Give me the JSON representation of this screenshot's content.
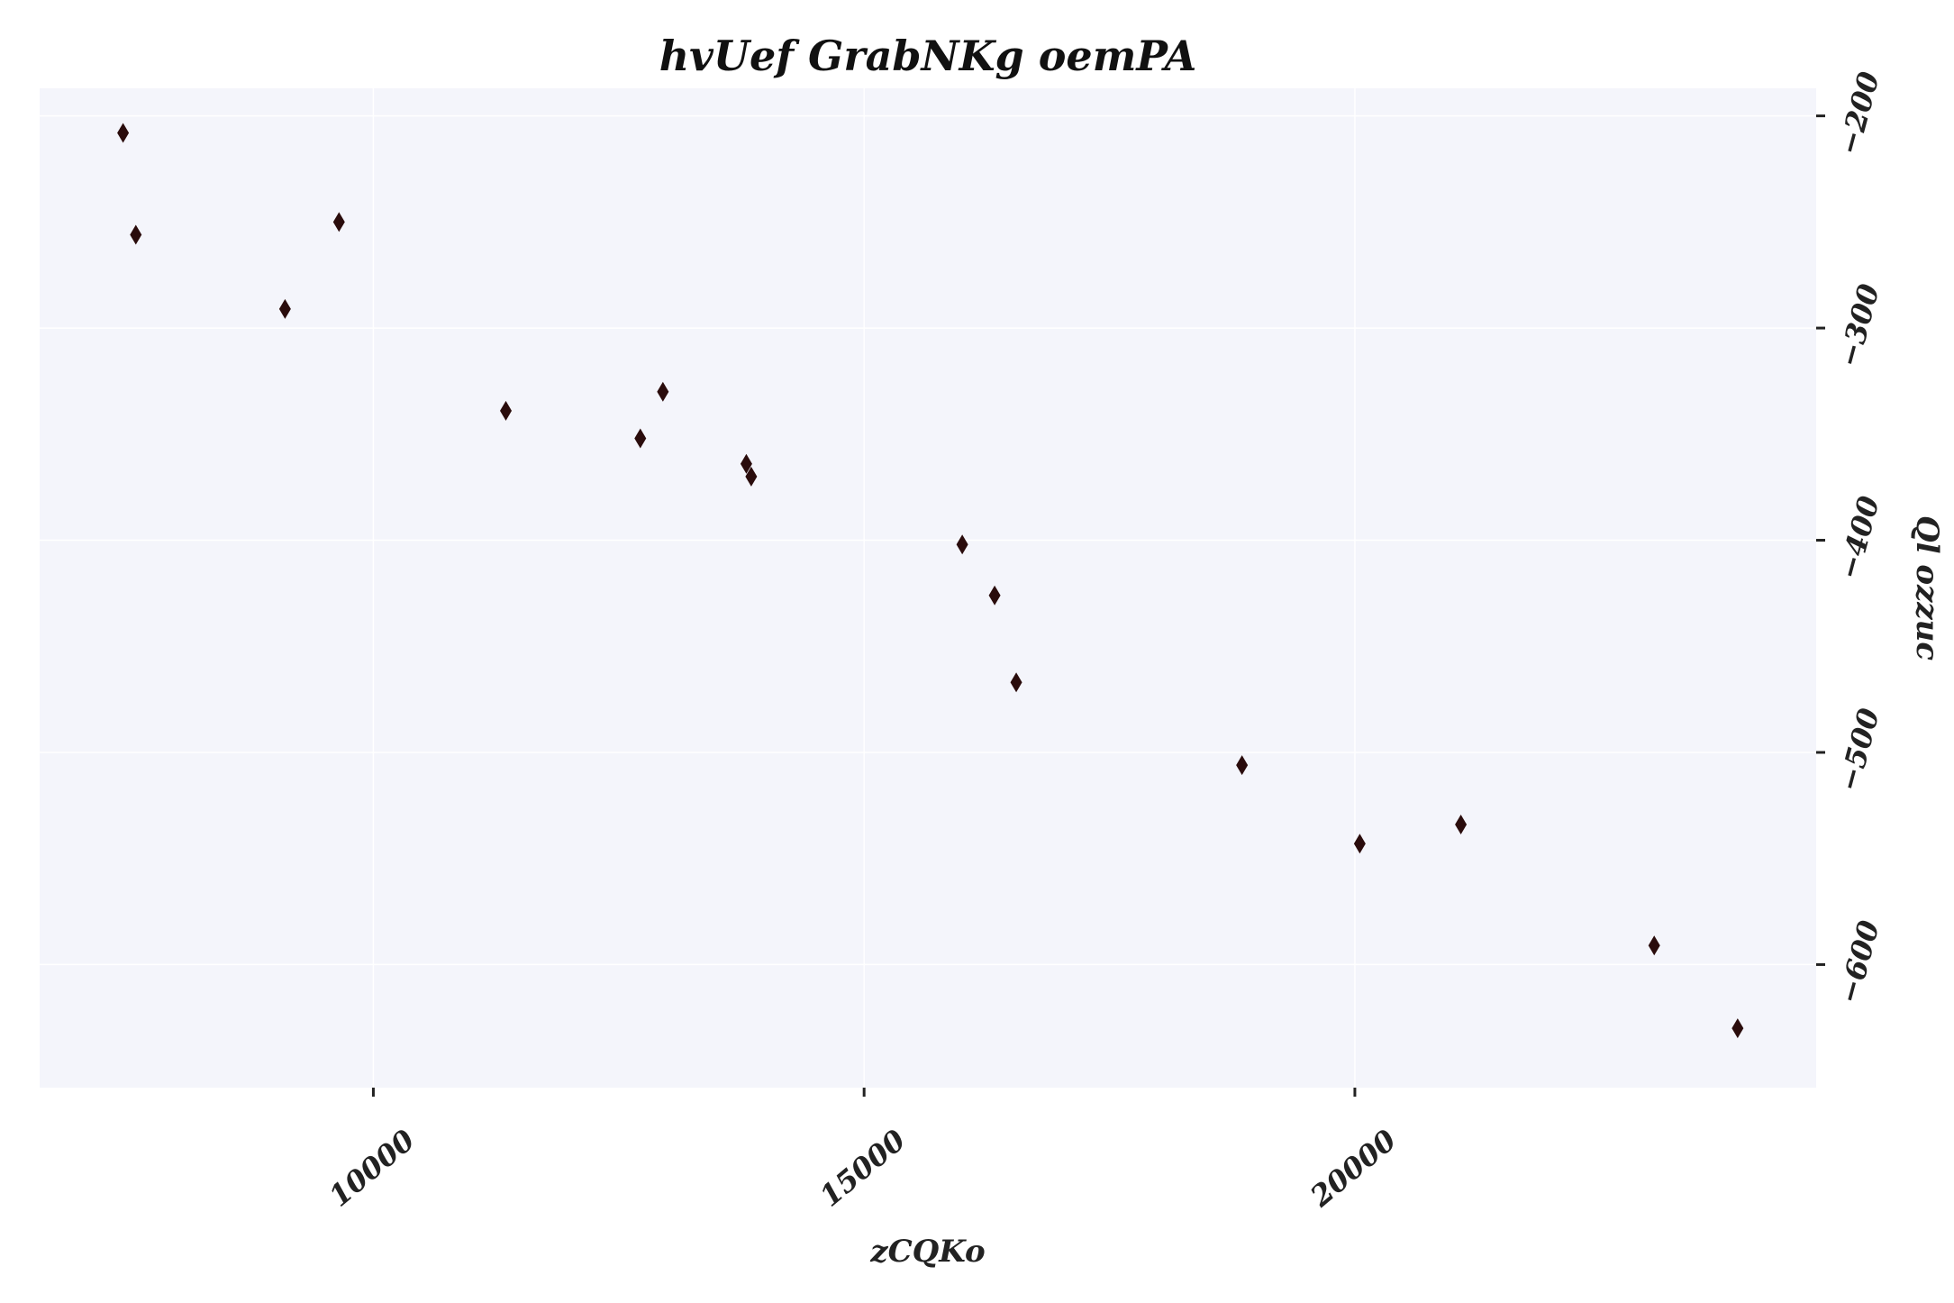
{
  "chart_data": {
    "type": "scatter",
    "title": "hvUef GrabNKg oemPA",
    "xlabel": "zCQKo",
    "ylabel": "Ql ozzuc",
    "xlim": [
      6600,
      24700
    ],
    "ylim": [
      -658,
      -187
    ],
    "x_ticks": [
      10000,
      15000,
      20000
    ],
    "x_tick_labels": [
      "10000",
      "15000",
      "20000"
    ],
    "y_ticks": [
      -200,
      -300,
      -400,
      -500,
      -600
    ],
    "y_tick_labels": [
      "−200",
      "−300",
      "−400",
      "−500",
      "−600"
    ],
    "y_axis_position": "right",
    "grid": true,
    "legend": "none",
    "marker": "diamond",
    "colors": {
      "plot_bg": "#f4f5fb",
      "grid": "#ffffff",
      "marker": "#2a0c0c",
      "text": "#222222"
    },
    "x": [
      7450,
      7580,
      9100,
      9650,
      11350,
      12720,
      12950,
      13800,
      13850,
      16000,
      16330,
      16550,
      18850,
      20050,
      21080,
      23050,
      23900
    ],
    "y": [
      -208,
      -256,
      -291,
      -250,
      -339,
      -352,
      -330,
      -364,
      -370,
      -402,
      -426,
      -467,
      -506,
      -543,
      -534,
      -591,
      -630
    ]
  }
}
